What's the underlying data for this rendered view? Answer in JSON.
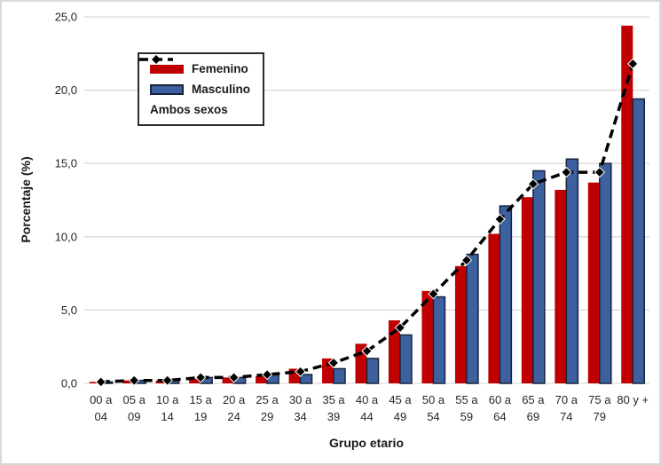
{
  "figure": {
    "y_axis_title": "Porcentaje (%)",
    "x_axis_title": "Grupo etario"
  },
  "legend": {
    "items": [
      {
        "label": "Femenino",
        "swatch": "red-bar-swatch",
        "color": "#C00000"
      },
      {
        "label": "Masculino",
        "swatch": "blue-bar-swatch",
        "color": "#3D619E"
      },
      {
        "label": "Ambos sexos",
        "swatch": "dashed-line-swatch",
        "color": "#000000"
      }
    ]
  },
  "colors": {
    "femenino_fill": "#C00000",
    "masculino_fill": "#3D619E",
    "masculino_border": "#17233E",
    "ambos_line": "#000000",
    "gridline": "#D9D9D9",
    "text": "#262626",
    "figure_border": "#D9D9D9",
    "background": "#FFFFFF"
  },
  "chart_data": {
    "type": "bar",
    "subtype": "grouped bars with dashed line overlay",
    "title": "",
    "xlabel": "Grupo etario",
    "ylabel": "Porcentaje (%)",
    "ylim": [
      0,
      25
    ],
    "ytick_labels": [
      "0,0",
      "5,0",
      "10,0",
      "15,0",
      "20,0",
      "25,0"
    ],
    "grid": true,
    "legend_position": "upper-left-inside",
    "categories": [
      "00 a 04",
      "05 a 09",
      "10 a 14",
      "15 a 19",
      "20 a 24",
      "25 a 29",
      "30 a 34",
      "35 a 39",
      "40 a 44",
      "45 a 49",
      "50 a 54",
      "55 a 59",
      "60 a 64",
      "65 a 69",
      "70 a 74",
      "75 a 79",
      "80 y +"
    ],
    "series": [
      {
        "name": "Femenino",
        "type": "bar",
        "color": "#C00000",
        "values": [
          0.1,
          0.2,
          0.2,
          0.3,
          0.4,
          0.5,
          1.0,
          1.7,
          2.7,
          4.3,
          6.3,
          8.0,
          10.2,
          12.7,
          13.2,
          13.7,
          24.4
        ]
      },
      {
        "name": "Masculino",
        "type": "bar",
        "color": "#3D619E",
        "values": [
          0.1,
          0.2,
          0.2,
          0.4,
          0.4,
          0.6,
          0.6,
          1.0,
          1.7,
          3.3,
          5.9,
          8.8,
          12.1,
          14.5,
          15.3,
          15.0,
          19.4
        ]
      },
      {
        "name": "Ambos sexos",
        "type": "line",
        "color": "#000000",
        "line_style": "dashed",
        "marker": "diamond",
        "values": [
          0.1,
          0.2,
          0.2,
          0.4,
          0.4,
          0.6,
          0.8,
          1.4,
          2.2,
          3.8,
          6.1,
          8.4,
          11.2,
          13.6,
          14.4,
          14.4,
          21.8
        ]
      }
    ]
  }
}
